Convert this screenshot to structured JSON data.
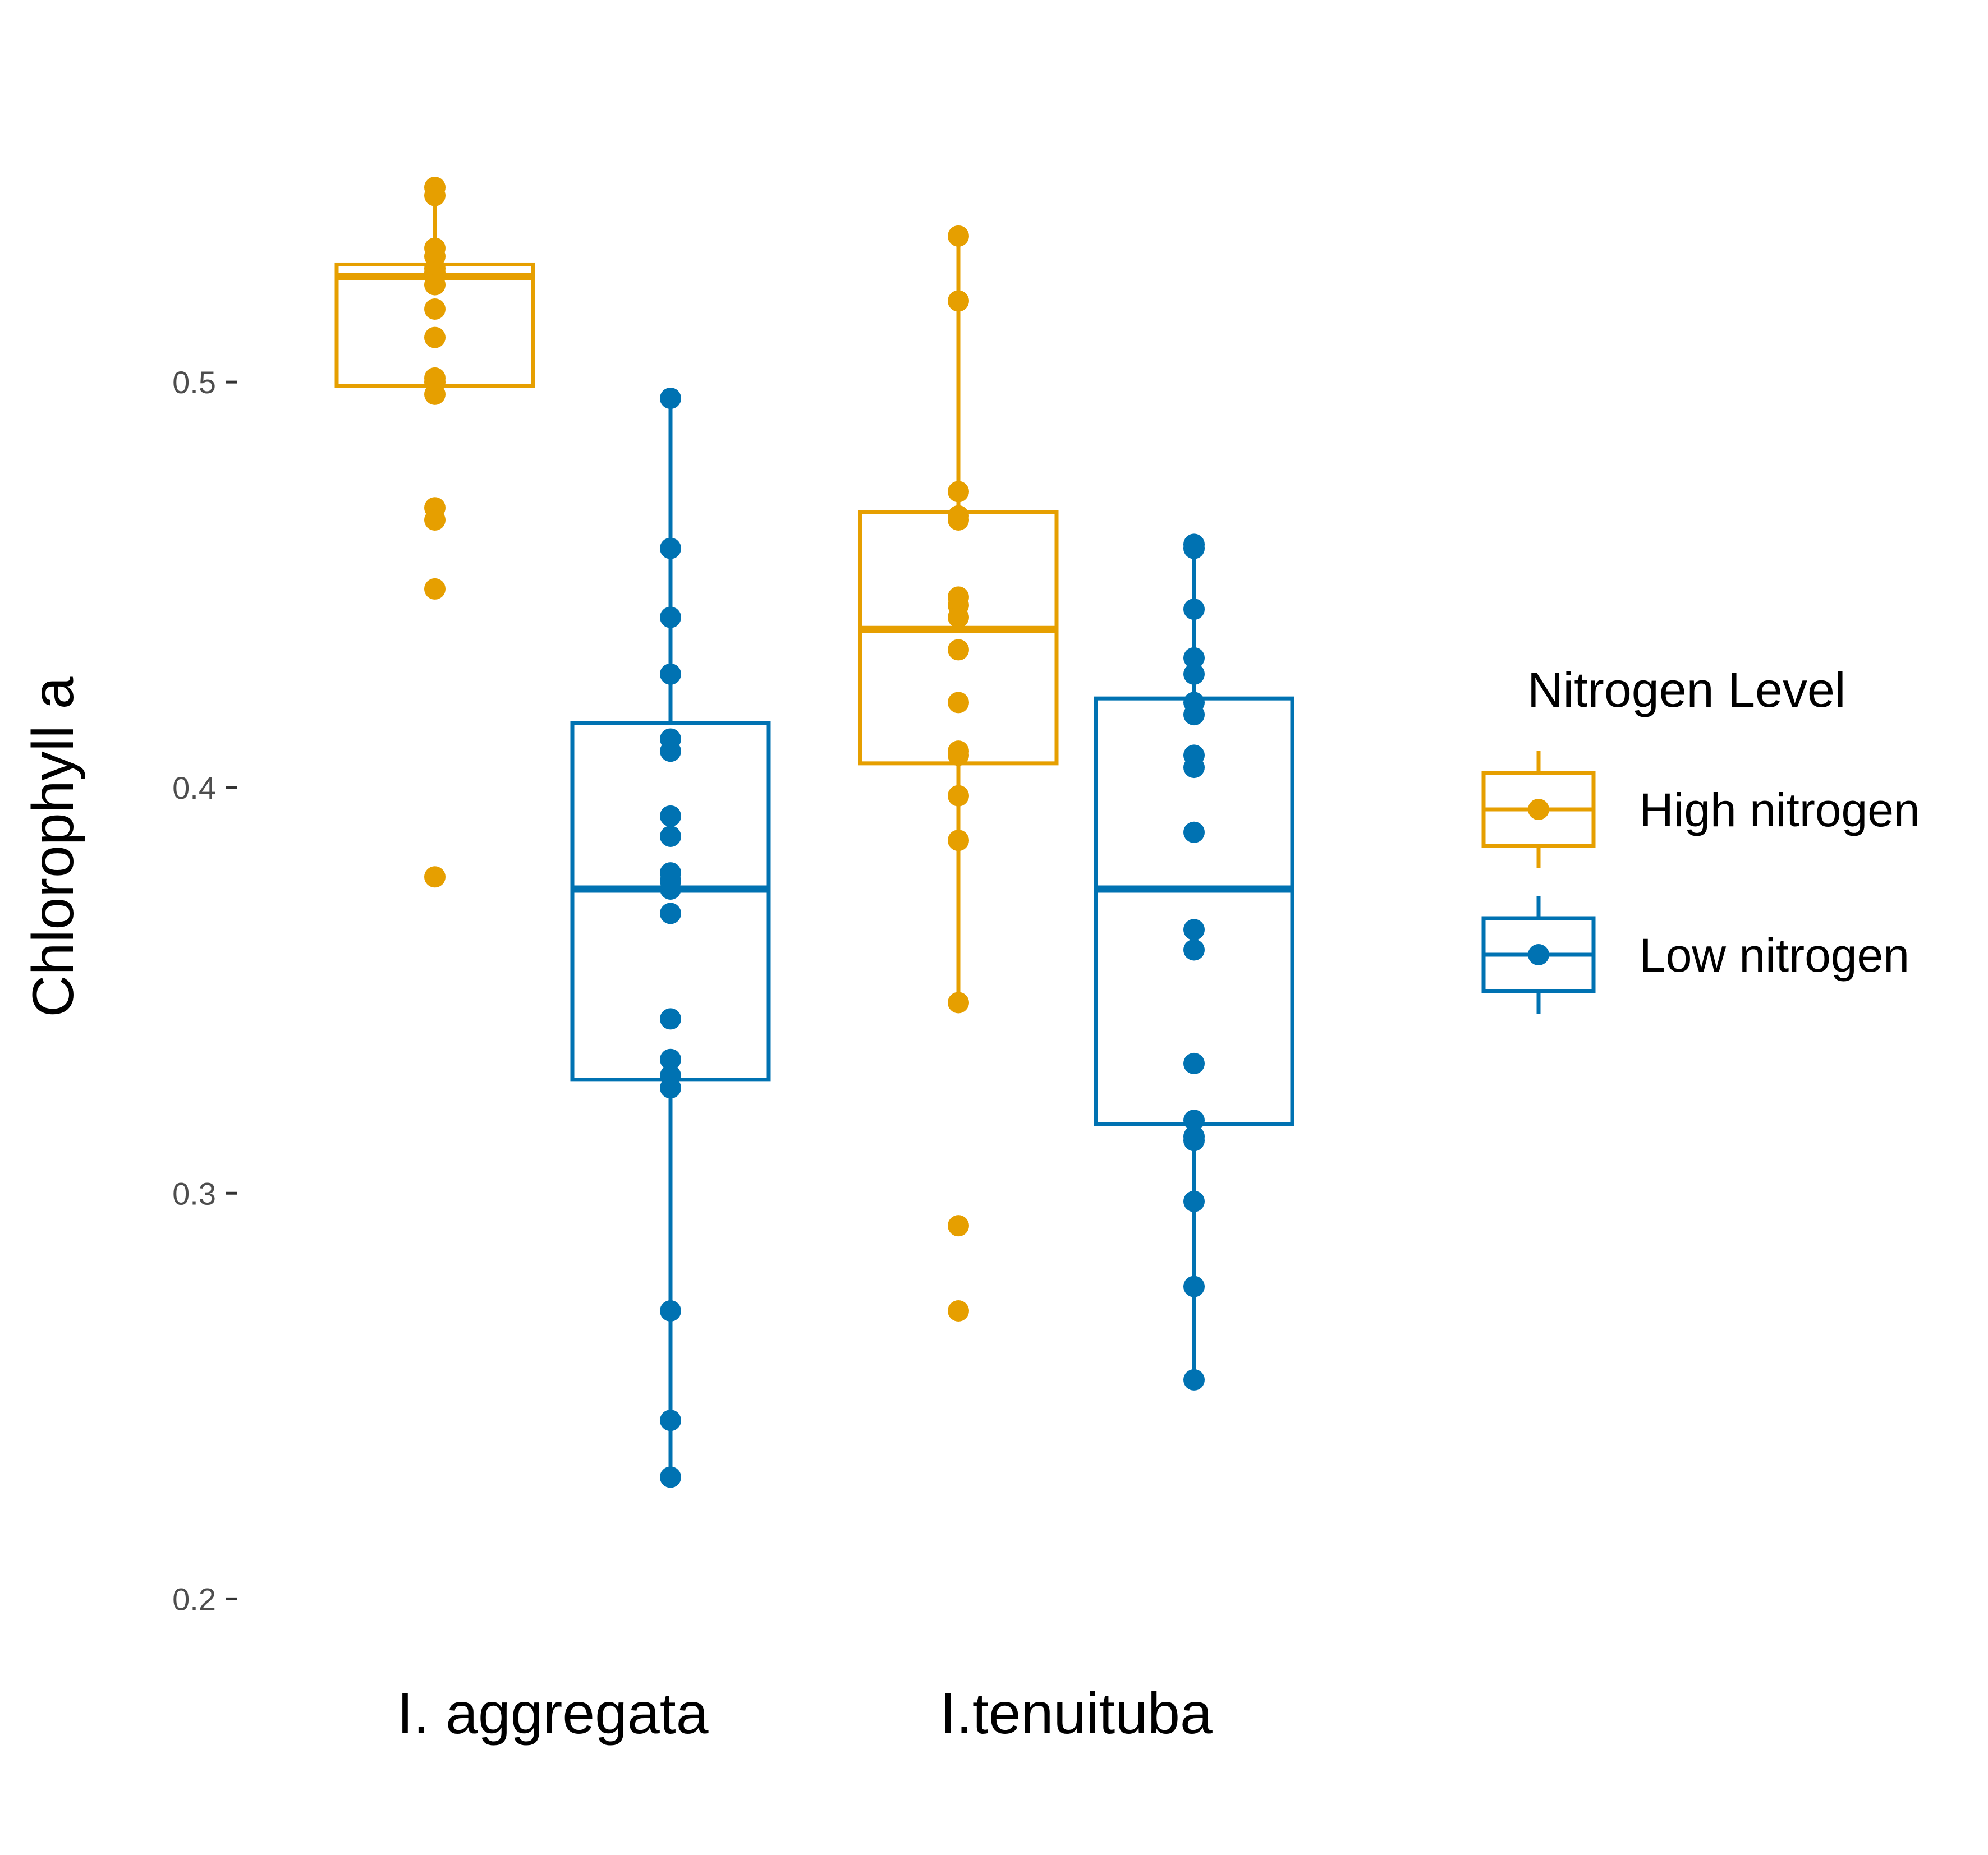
{
  "chart_data": {
    "type": "boxplot",
    "ylabel": "Chlorophyll a",
    "xlabel": "",
    "ylim": [
      0.18,
      0.57
    ],
    "yticks": [
      0.2,
      0.3,
      0.4,
      0.5
    ],
    "ytick_labels": [
      "0.2",
      "0.3",
      "0.4",
      "0.5"
    ],
    "grid": false,
    "legend": {
      "title": "Nitrogen Level",
      "position": "right"
    },
    "categories": [
      "I. aggregata",
      "I.tenuituba"
    ],
    "colors": {
      "High nitrogen": "#E69F00",
      "Low nitrogen": "#0072B2"
    },
    "series": [
      {
        "name": "High nitrogen",
        "groups": [
          {
            "category": "I. aggregata",
            "box": {
              "whisker_low": 0.497,
              "q1": 0.499,
              "median": 0.526,
              "q3": 0.529,
              "whisker_high": 0.548
            },
            "points": [
              0.548,
              0.546,
              0.533,
              0.531,
              0.528,
              0.527,
              0.526,
              0.526,
              0.524,
              0.518,
              0.511,
              0.501,
              0.5,
              0.497,
              0.469,
              0.466,
              0.449,
              0.378
            ]
          },
          {
            "category": "I.tenuituba",
            "box": {
              "whisker_low": 0.347,
              "q1": 0.406,
              "median": 0.439,
              "q3": 0.468,
              "whisker_high": 0.536
            },
            "points": [
              0.536,
              0.52,
              0.473,
              0.467,
              0.466,
              0.447,
              0.445,
              0.442,
              0.434,
              0.421,
              0.409,
              0.408,
              0.398,
              0.387,
              0.347,
              0.292,
              0.271
            ]
          }
        ]
      },
      {
        "name": "Low nitrogen",
        "groups": [
          {
            "category": "I. aggregata",
            "box": {
              "whisker_low": 0.23,
              "q1": 0.328,
              "median": 0.375,
              "q3": 0.416,
              "whisker_high": 0.496
            },
            "points": [
              0.496,
              0.459,
              0.442,
              0.428,
              0.412,
              0.409,
              0.393,
              0.388,
              0.379,
              0.377,
              0.375,
              0.369,
              0.343,
              0.333,
              0.329,
              0.326,
              0.271,
              0.244,
              0.23
            ]
          },
          {
            "category": "I.tenuituba",
            "box": {
              "whisker_low": 0.254,
              "q1": 0.317,
              "median": 0.375,
              "q3": 0.422,
              "whisker_high": 0.46
            },
            "points": [
              0.46,
              0.459,
              0.444,
              0.432,
              0.428,
              0.421,
              0.418,
              0.408,
              0.405,
              0.389,
              0.365,
              0.36,
              0.332,
              0.318,
              0.314,
              0.313,
              0.298,
              0.277,
              0.254
            ]
          }
        ]
      }
    ]
  }
}
